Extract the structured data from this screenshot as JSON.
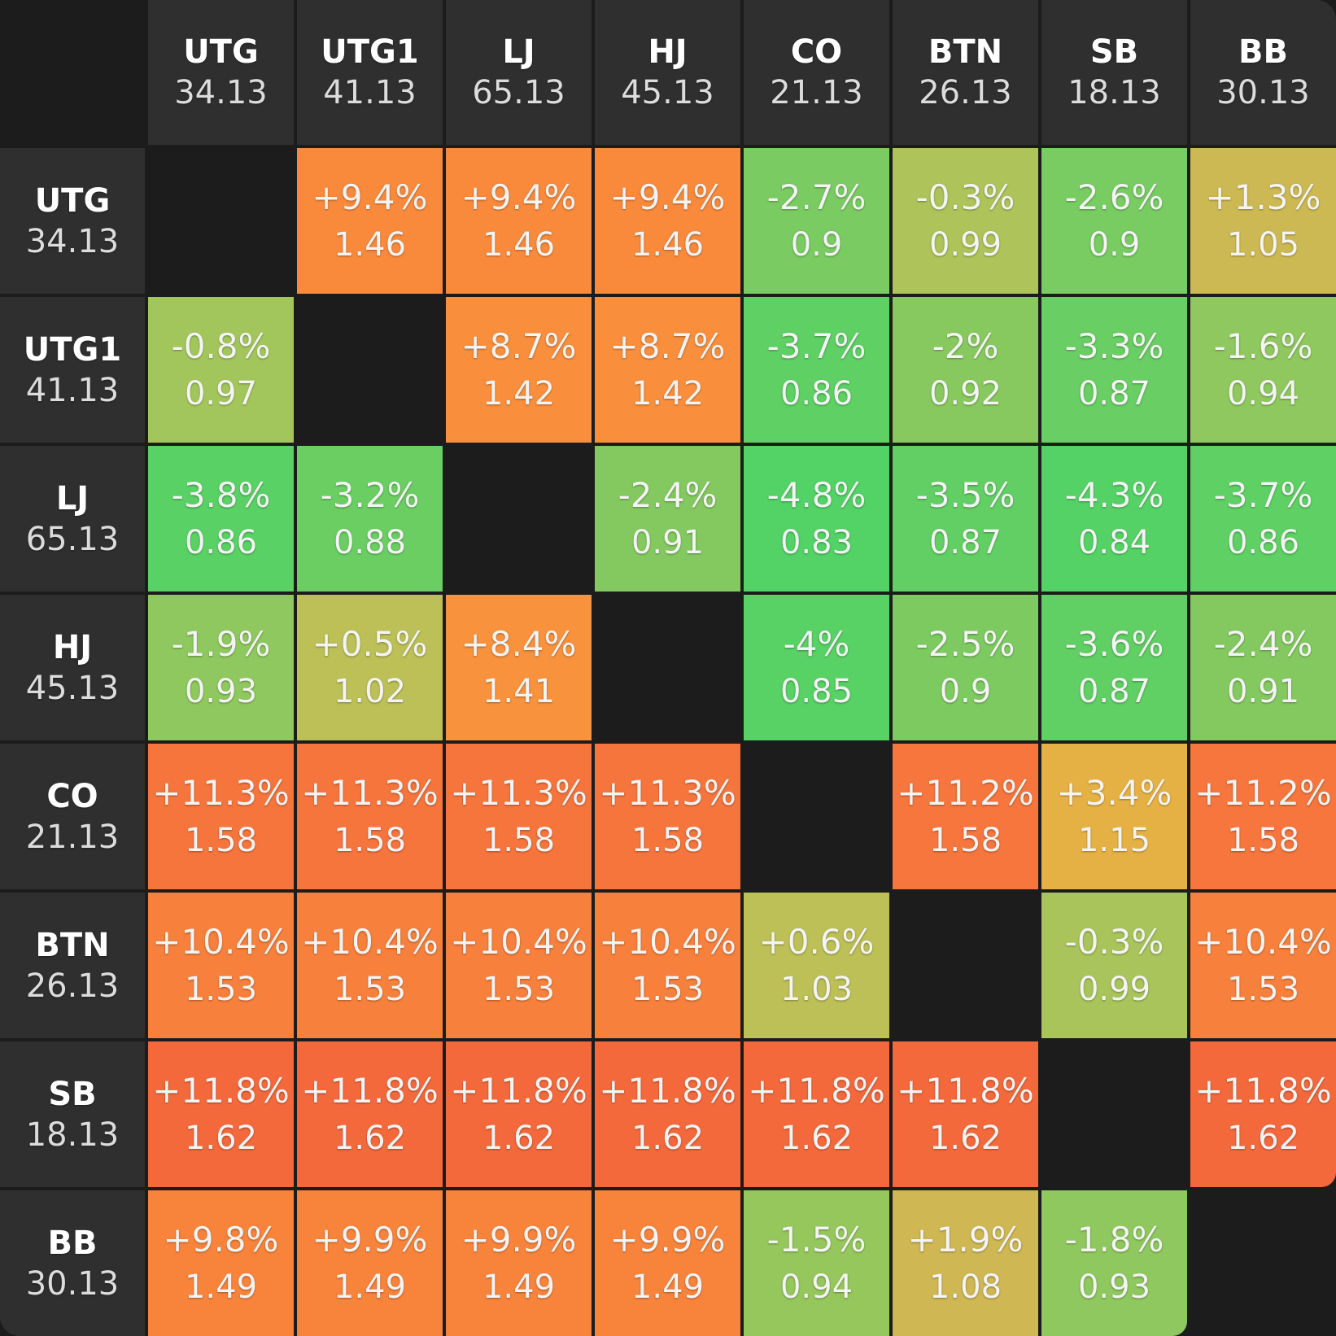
{
  "chart_data": {
    "type": "heatmap",
    "positions": [
      {
        "name": "UTG",
        "stack": "34.13"
      },
      {
        "name": "UTG1",
        "stack": "41.13"
      },
      {
        "name": "LJ",
        "stack": "65.13"
      },
      {
        "name": "HJ",
        "stack": "45.13"
      },
      {
        "name": "CO",
        "stack": "21.13"
      },
      {
        "name": "BTN",
        "stack": "26.13"
      },
      {
        "name": "SB",
        "stack": "18.13"
      },
      {
        "name": "BB",
        "stack": "30.13"
      }
    ],
    "cells": [
      [
        null,
        {
          "pct": "+9.4%",
          "ratio": "1.46",
          "color": "#f98a3c"
        },
        {
          "pct": "+9.4%",
          "ratio": "1.46",
          "color": "#f98a3c"
        },
        {
          "pct": "+9.4%",
          "ratio": "1.46",
          "color": "#f98a3c"
        },
        {
          "pct": "-2.7%",
          "ratio": "0.9",
          "color": "#7acb62"
        },
        {
          "pct": "-0.3%",
          "ratio": "0.99",
          "color": "#aec35a"
        },
        {
          "pct": "-2.6%",
          "ratio": "0.9",
          "color": "#78cc62"
        },
        {
          "pct": "+1.3%",
          "ratio": "1.05",
          "color": "#cdb953"
        }
      ],
      [
        {
          "pct": "-0.8%",
          "ratio": "0.97",
          "color": "#a3c65c"
        },
        null,
        {
          "pct": "+8.7%",
          "ratio": "1.42",
          "color": "#f98f3c"
        },
        {
          "pct": "+8.7%",
          "ratio": "1.42",
          "color": "#f98f3c"
        },
        {
          "pct": "-3.7%",
          "ratio": "0.86",
          "color": "#5ed064"
        },
        {
          "pct": "-2%",
          "ratio": "0.92",
          "color": "#88c95f"
        },
        {
          "pct": "-3.3%",
          "ratio": "0.87",
          "color": "#69ce63"
        },
        {
          "pct": "-1.6%",
          "ratio": "0.94",
          "color": "#8fc85e"
        }
      ],
      [
        {
          "pct": "-3.8%",
          "ratio": "0.86",
          "color": "#5ad165"
        },
        {
          "pct": "-3.2%",
          "ratio": "0.88",
          "color": "#6bce63"
        },
        null,
        {
          "pct": "-2.4%",
          "ratio": "0.91",
          "color": "#84c960"
        },
        {
          "pct": "-4.8%",
          "ratio": "0.83",
          "color": "#53d266"
        },
        {
          "pct": "-3.5%",
          "ratio": "0.87",
          "color": "#62cf64"
        },
        {
          "pct": "-4.3%",
          "ratio": "0.84",
          "color": "#55d266"
        },
        {
          "pct": "-3.7%",
          "ratio": "0.86",
          "color": "#5ed064"
        }
      ],
      [
        {
          "pct": "-1.9%",
          "ratio": "0.93",
          "color": "#8ec85e"
        },
        {
          "pct": "+0.5%",
          "ratio": "1.02",
          "color": "#bcc057"
        },
        {
          "pct": "+8.4%",
          "ratio": "1.41",
          "color": "#f9923c"
        },
        null,
        {
          "pct": "-4%",
          "ratio": "0.85",
          "color": "#58d165"
        },
        {
          "pct": "-2.5%",
          "ratio": "0.9",
          "color": "#7dca61"
        },
        {
          "pct": "-3.6%",
          "ratio": "0.87",
          "color": "#60cf64"
        },
        {
          "pct": "-2.4%",
          "ratio": "0.91",
          "color": "#84c960"
        }
      ],
      [
        {
          "pct": "+11.3%",
          "ratio": "1.58",
          "color": "#f6753d"
        },
        {
          "pct": "+11.3%",
          "ratio": "1.58",
          "color": "#f6753d"
        },
        {
          "pct": "+11.3%",
          "ratio": "1.58",
          "color": "#f6753d"
        },
        {
          "pct": "+11.3%",
          "ratio": "1.58",
          "color": "#f6753d"
        },
        null,
        {
          "pct": "+11.2%",
          "ratio": "1.58",
          "color": "#f6763d"
        },
        {
          "pct": "+3.4%",
          "ratio": "1.15",
          "color": "#e6b144"
        },
        {
          "pct": "+11.2%",
          "ratio": "1.58",
          "color": "#f6763d"
        }
      ],
      [
        {
          "pct": "+10.4%",
          "ratio": "1.53",
          "color": "#f7803c"
        },
        {
          "pct": "+10.4%",
          "ratio": "1.53",
          "color": "#f7803c"
        },
        {
          "pct": "+10.4%",
          "ratio": "1.53",
          "color": "#f7803c"
        },
        {
          "pct": "+10.4%",
          "ratio": "1.53",
          "color": "#f7803c"
        },
        {
          "pct": "+0.6%",
          "ratio": "1.03",
          "color": "#bdbf57"
        },
        null,
        {
          "pct": "-0.3%",
          "ratio": "0.99",
          "color": "#a9c45b"
        },
        {
          "pct": "+10.4%",
          "ratio": "1.53",
          "color": "#f7803c"
        }
      ],
      [
        {
          "pct": "+11.8%",
          "ratio": "1.62",
          "color": "#f4693c"
        },
        {
          "pct": "+11.8%",
          "ratio": "1.62",
          "color": "#f4693c"
        },
        {
          "pct": "+11.8%",
          "ratio": "1.62",
          "color": "#f4693c"
        },
        {
          "pct": "+11.8%",
          "ratio": "1.62",
          "color": "#f4693c"
        },
        {
          "pct": "+11.8%",
          "ratio": "1.62",
          "color": "#f4693c"
        },
        {
          "pct": "+11.8%",
          "ratio": "1.62",
          "color": "#f4693c"
        },
        null,
        {
          "pct": "+11.8%",
          "ratio": "1.62",
          "color": "#f4693c"
        }
      ],
      [
        {
          "pct": "+9.8%",
          "ratio": "1.49",
          "color": "#f8843c"
        },
        {
          "pct": "+9.9%",
          "ratio": "1.49",
          "color": "#f8843c"
        },
        {
          "pct": "+9.9%",
          "ratio": "1.49",
          "color": "#f8843c"
        },
        {
          "pct": "+9.9%",
          "ratio": "1.49",
          "color": "#f8843c"
        },
        {
          "pct": "-1.5%",
          "ratio": "0.94",
          "color": "#95c75d"
        },
        {
          "pct": "+1.9%",
          "ratio": "1.08",
          "color": "#cfb753"
        },
        {
          "pct": "-1.8%",
          "ratio": "0.93",
          "color": "#8fc85e"
        },
        null
      ]
    ]
  }
}
